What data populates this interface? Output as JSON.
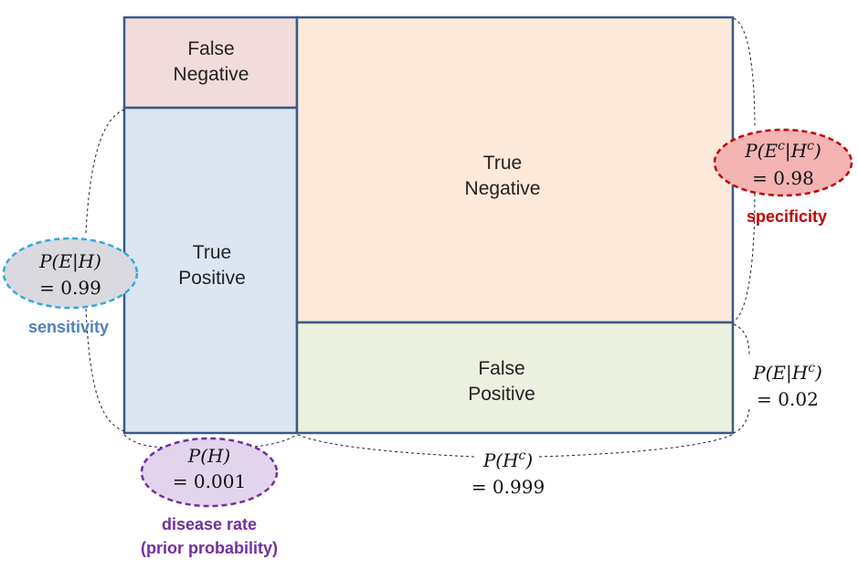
{
  "cells": {
    "false_negative": {
      "line1": "False",
      "line2": "Negative",
      "fill": "#f2dcdb"
    },
    "true_positive": {
      "line1": "True",
      "line2": "Positive",
      "fill": "#dce6f2"
    },
    "true_negative": {
      "line1": "True",
      "line2": "Negative",
      "fill": "#fde9d9"
    },
    "false_positive": {
      "line1": "False",
      "line2": "Positive",
      "fill": "#ebf1de"
    }
  },
  "border_color": "#3a5a85",
  "sensitivity": {
    "prob": "P(E|H)",
    "value": "= 0.99",
    "label": "sensitivity",
    "label_color": "#4f81bd",
    "fill": "#d9d9df",
    "border": "#33aadd"
  },
  "specificity": {
    "prob_prefix": "P(E",
    "prob_sup1": "c",
    "prob_mid": "|H",
    "prob_sup2": "c",
    "prob_suffix": ")",
    "value": "= 0.98",
    "label": "specificity",
    "label_color": "#c00000",
    "fill": "#f4b4b4",
    "border": "#c00000"
  },
  "prior": {
    "prob": "P(H)",
    "value": "= 0.001",
    "label_line1": "disease rate",
    "label_line2": "(prior probability)",
    "label_color": "#7030a0",
    "fill": "#e2d4ec",
    "border": "#7030a0"
  },
  "false_positive_rate": {
    "prob_prefix": "P(E|H",
    "prob_sup": "c",
    "prob_suffix": ")",
    "value": "= 0.02"
  },
  "complement": {
    "prob_prefix": "P(H",
    "prob_sup": "c",
    "prob_suffix": ")",
    "value": "= 0.999"
  }
}
